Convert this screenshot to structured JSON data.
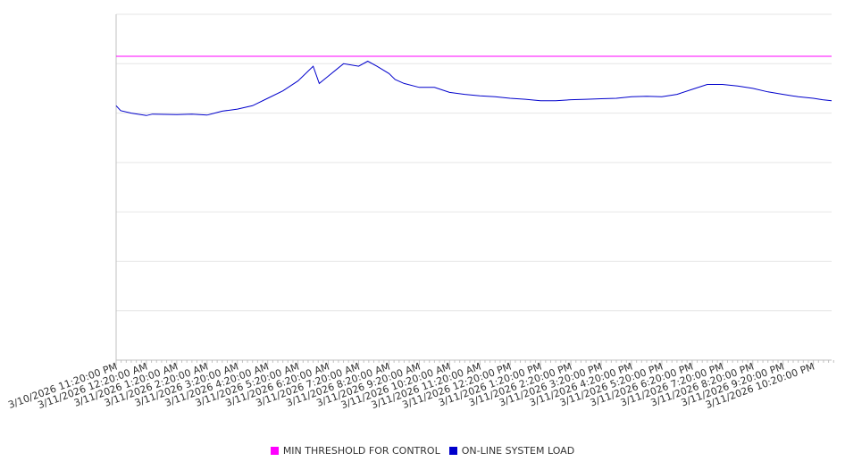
{
  "chart_data": {
    "type": "line",
    "title": "",
    "xlabel": "",
    "ylabel": "",
    "grid": true,
    "legend_position": "bottom",
    "x_tick_labels": [
      "3/10/2026 11:20:00 PM",
      "3/11/2026 12:20:00 AM",
      "3/11/2026 1:20:00 AM",
      "3/11/2026 2:20:00 AM",
      "3/11/2026 3:20:00 AM",
      "3/11/2026 4:20:00 AM",
      "3/11/2026 5:20:00 AM",
      "3/11/2026 6:20:00 AM",
      "3/11/2026 7:20:00 AM",
      "3/11/2026 8:20:00 AM",
      "3/11/2026 9:20:00 AM",
      "3/11/2026 10:20:00 AM",
      "3/11/2026 11:20:00 AM",
      "3/11/2026 12:20:00 PM",
      "3/11/2026 1:20:00 PM",
      "3/11/2026 2:20:00 PM",
      "3/11/2026 3:20:00 PM",
      "3/11/2026 4:20:00 PM",
      "3/11/2026 5:20:00 PM",
      "3/11/2026 6:20:00 PM",
      "3/11/2026 7:20:00 PM",
      "3/11/2026 8:20:00 PM",
      "3/11/2026 9:20:00 PM",
      "3/11/2026 10:20:00 PM"
    ],
    "x_range_hours": [
      0,
      23.6
    ],
    "y_range_relative": [
      0,
      7
    ],
    "series": [
      {
        "name": "MIN THRESHOLD FOR CONTROL",
        "color": "#ff00ff",
        "x_hours": [
          0,
          23.6
        ],
        "values": [
          6.15,
          6.15
        ]
      },
      {
        "name": "ON-LINE SYSTEM LOAD",
        "color": "#0000cc",
        "x_hours": [
          0,
          0.15,
          0.5,
          1.0,
          1.2,
          2.0,
          2.5,
          3.0,
          3.5,
          4.0,
          4.5,
          5.0,
          5.5,
          6.0,
          6.5,
          6.7,
          7.0,
          7.3,
          7.5,
          8.0,
          8.3,
          8.6,
          9.0,
          9.2,
          9.5,
          10.0,
          10.5,
          11.0,
          11.5,
          12.0,
          12.5,
          13.0,
          13.5,
          14.0,
          14.5,
          15.0,
          15.5,
          16.0,
          16.5,
          17.0,
          17.5,
          18.0,
          18.5,
          19.0,
          19.5,
          20.0,
          20.5,
          21.0,
          21.5,
          22.0,
          22.5,
          23.0,
          23.3,
          23.6
        ],
        "values": [
          5.15,
          5.05,
          5.0,
          4.95,
          4.98,
          4.97,
          4.98,
          4.96,
          5.04,
          5.08,
          5.15,
          5.3,
          5.45,
          5.65,
          5.95,
          5.6,
          5.75,
          5.9,
          6.0,
          5.95,
          6.05,
          5.95,
          5.8,
          5.68,
          5.6,
          5.52,
          5.52,
          5.42,
          5.38,
          5.35,
          5.33,
          5.3,
          5.28,
          5.25,
          5.25,
          5.27,
          5.28,
          5.29,
          5.3,
          5.33,
          5.34,
          5.33,
          5.38,
          5.48,
          5.58,
          5.58,
          5.55,
          5.5,
          5.43,
          5.38,
          5.33,
          5.3,
          5.27,
          5.25
        ]
      }
    ]
  }
}
